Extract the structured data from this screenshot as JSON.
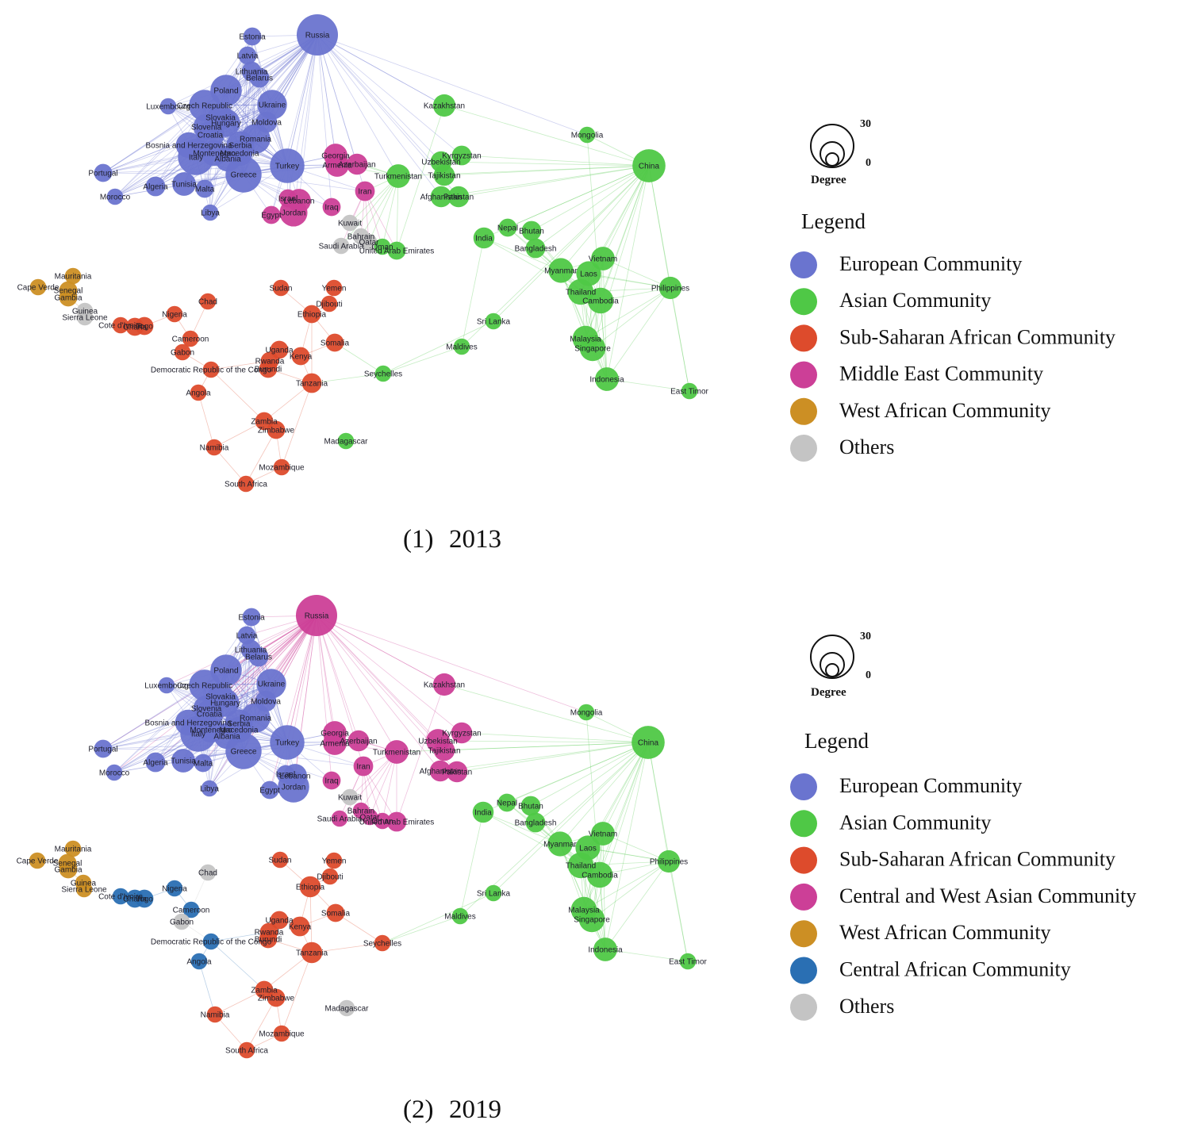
{
  "colors": {
    "eu": "#6a74cf",
    "as": "#4fc846",
    "ssa": "#dd4b2c",
    "me": "#cc3f97",
    "wa": "#cc8f24",
    "ca": "#2a6fb3",
    "ot": "#c4c4c4"
  },
  "degree": {
    "title": "Degree",
    "max": "30",
    "min": "0"
  },
  "legend_title": "Legend",
  "panels": [
    {
      "caption_num": "(1)",
      "caption_year": "2013",
      "legend": [
        {
          "color": "#6a74cf",
          "label": "European Community"
        },
        {
          "color": "#4fc846",
          "label": "Asian Community"
        },
        {
          "color": "#dd4b2c",
          "label": "Sub-Saharan African Community"
        },
        {
          "color": "#cc3f97",
          "label": "Middle East Community"
        },
        {
          "color": "#cc8f24",
          "label": "West African Community"
        },
        {
          "color": "#c4c4c4",
          "label": "Others"
        }
      ]
    },
    {
      "caption_num": "(2)",
      "caption_year": "2019",
      "legend": [
        {
          "color": "#6a74cf",
          "label": "European Community"
        },
        {
          "color": "#4fc846",
          "label": "Asian Community"
        },
        {
          "color": "#dd4b2c",
          "label": "Sub-Saharan African Community"
        },
        {
          "color": "#cc3f97",
          "label": "Central and West Asian Community"
        },
        {
          "color": "#cc8f24",
          "label": "West African Community"
        },
        {
          "color": "#2a6fb3",
          "label": "Central  African Community"
        },
        {
          "color": "#c4c4c4",
          "label": "Others"
        }
      ]
    }
  ],
  "nodes": [
    {
      "id": "Russia",
      "label": "Russia",
      "c": [
        "eu",
        "me"
      ],
      "deg": [
        30,
        30
      ]
    },
    {
      "id": "Estonia",
      "label": "Estonia",
      "c": [
        "eu",
        "eu"
      ],
      "deg": [
        4,
        4
      ]
    },
    {
      "id": "Latvia",
      "label": "Latvia",
      "c": [
        "eu",
        "eu"
      ],
      "deg": [
        4,
        4
      ]
    },
    {
      "id": "Lithuania",
      "label": "Lithuania",
      "c": [
        "eu",
        "eu"
      ],
      "deg": [
        5,
        5
      ]
    },
    {
      "id": "Belarus",
      "label": "Belarus",
      "c": [
        "eu",
        "eu"
      ],
      "deg": [
        5,
        5
      ]
    },
    {
      "id": "Poland",
      "label": "Poland",
      "c": [
        "eu",
        "eu"
      ],
      "deg": [
        16,
        16
      ]
    },
    {
      "id": "Ukraine",
      "label": "Ukraine",
      "c": [
        "eu",
        "eu"
      ],
      "deg": [
        14,
        14
      ]
    },
    {
      "id": "Luxembourg",
      "label": "Luxembourg",
      "c": [
        "eu",
        "eu"
      ],
      "deg": [
        3,
        3
      ]
    },
    {
      "id": "Czech",
      "label": "Czech Republic",
      "c": [
        "eu",
        "eu"
      ],
      "deg": [
        16,
        16
      ]
    },
    {
      "id": "Slovakia",
      "label": "Slovakia",
      "c": [
        "eu",
        "eu"
      ],
      "deg": [
        10,
        10
      ]
    },
    {
      "id": "Hungary",
      "label": "Hungary",
      "c": [
        "eu",
        "eu"
      ],
      "deg": [
        12,
        12
      ]
    },
    {
      "id": "Moldova",
      "label": "Moldova",
      "c": [
        "eu",
        "eu"
      ],
      "deg": [
        6,
        6
      ]
    },
    {
      "id": "Slovenia",
      "label": "Slovenia",
      "c": [
        "eu",
        "eu"
      ],
      "deg": [
        10,
        10
      ]
    },
    {
      "id": "Croatia",
      "label": "Croatia",
      "c": [
        "eu",
        "eu"
      ],
      "deg": [
        12,
        12
      ]
    },
    {
      "id": "Romania",
      "label": "Romania",
      "c": [
        "eu",
        "eu"
      ],
      "deg": [
        14,
        14
      ]
    },
    {
      "id": "Bosnia",
      "label": "Bosnia and Herzegovina",
      "c": [
        "eu",
        "eu"
      ],
      "deg": [
        10,
        10
      ]
    },
    {
      "id": "Serbia",
      "label": "Serbia",
      "c": [
        "eu",
        "eu"
      ],
      "deg": [
        12,
        12
      ]
    },
    {
      "id": "Montenegro",
      "label": "Montenegro",
      "c": [
        "eu",
        "eu"
      ],
      "deg": [
        10,
        10
      ]
    },
    {
      "id": "Macedonia",
      "label": "Macedonia",
      "c": [
        "eu",
        "eu"
      ],
      "deg": [
        10,
        10
      ]
    },
    {
      "id": "Albania",
      "label": "Albania",
      "c": [
        "eu",
        "eu"
      ],
      "deg": [
        10,
        10
      ]
    },
    {
      "id": "Italy",
      "label": "Italy",
      "c": [
        "eu",
        "eu"
      ],
      "deg": [
        22,
        22
      ]
    },
    {
      "id": "Greece",
      "label": "Greece",
      "c": [
        "eu",
        "eu"
      ],
      "deg": [
        22,
        22
      ]
    },
    {
      "id": "Turkey",
      "label": "Turkey",
      "c": [
        "eu",
        "eu"
      ],
      "deg": [
        20,
        20
      ]
    },
    {
      "id": "Portugal",
      "label": "Portugal",
      "c": [
        "eu",
        "eu"
      ],
      "deg": [
        4,
        4
      ]
    },
    {
      "id": "Morocco",
      "label": "Morocco",
      "c": [
        "eu",
        "eu"
      ],
      "deg": [
        3,
        3
      ]
    },
    {
      "id": "Algeria",
      "label": "Algeria",
      "c": [
        "eu",
        "eu"
      ],
      "deg": [
        5,
        5
      ]
    },
    {
      "id": "Tunisia",
      "label": "Tunisia",
      "c": [
        "eu",
        "eu"
      ],
      "deg": [
        8,
        8
      ]
    },
    {
      "id": "Malta",
      "label": "Malta",
      "c": [
        "eu",
        "eu"
      ],
      "deg": [
        4,
        4
      ]
    },
    {
      "id": "Libya",
      "label": "Libya",
      "c": [
        "eu",
        "eu"
      ],
      "deg": [
        3,
        3
      ]
    },
    {
      "id": "Egypt",
      "label": "Egypt",
      "c": [
        "me",
        "eu"
      ],
      "deg": [
        4,
        4
      ]
    },
    {
      "id": "Lebanon",
      "label": "Lebanon",
      "c": [
        "me",
        "eu"
      ],
      "deg": [
        8,
        8
      ]
    },
    {
      "id": "Jordan",
      "label": "Jordan",
      "c": [
        "me",
        "eu"
      ],
      "deg": [
        12,
        16
      ]
    },
    {
      "id": "Israel",
      "label": "Israel",
      "c": [
        "me",
        "eu"
      ],
      "deg": [
        4,
        4
      ]
    },
    {
      "id": "Georgia",
      "label": "Georgia",
      "c": [
        "me",
        "me"
      ],
      "deg": [
        8,
        8
      ]
    },
    {
      "id": "Armenia",
      "label": "Armenia",
      "c": [
        "me",
        "me"
      ],
      "deg": [
        8,
        8
      ]
    },
    {
      "id": "Azerbaijan",
      "label": "Azerbaijan",
      "c": [
        "me",
        "me"
      ],
      "deg": [
        6,
        6
      ]
    },
    {
      "id": "Iran",
      "label": "Iran",
      "c": [
        "me",
        "me"
      ],
      "deg": [
        5,
        5
      ]
    },
    {
      "id": "Iraq",
      "label": "Iraq",
      "c": [
        "me",
        "me"
      ],
      "deg": [
        4,
        4
      ]
    },
    {
      "id": "Kuwait",
      "label": "Kuwait",
      "c": [
        "ot",
        "ot"
      ],
      "deg": [
        3,
        3
      ]
    },
    {
      "id": "Bahrain",
      "label": "Bahrain",
      "c": [
        "ot",
        "me"
      ],
      "deg": [
        3,
        3
      ]
    },
    {
      "id": "Saudi",
      "label": "Saudi Arabia",
      "c": [
        "ot",
        "me"
      ],
      "deg": [
        3,
        3
      ]
    },
    {
      "id": "Qatar",
      "label": "Qatar",
      "c": [
        "ot",
        "me"
      ],
      "deg": [
        3,
        3
      ]
    },
    {
      "id": "UAE",
      "label": "United Arab Emirates",
      "c": [
        "as",
        "me"
      ],
      "deg": [
        4,
        5
      ]
    },
    {
      "id": "Oman",
      "label": "Oman",
      "c": [
        "as",
        "me"
      ],
      "deg": [
        3,
        3
      ]
    },
    {
      "id": "Kazakhstan",
      "label": "Kazakhstan",
      "c": [
        "as",
        "me"
      ],
      "deg": [
        7,
        7
      ]
    },
    {
      "id": "Turkmenistan",
      "label": "Turkmenistan",
      "c": [
        "as",
        "me"
      ],
      "deg": [
        8,
        8
      ]
    },
    {
      "id": "Uzbekistan",
      "label": "Uzbekistan",
      "c": [
        "as",
        "me"
      ],
      "deg": [
        6,
        8
      ]
    },
    {
      "id": "Kyrgyzstan",
      "label": "Kyrgyzstan",
      "c": [
        "as",
        "me"
      ],
      "deg": [
        5,
        6
      ]
    },
    {
      "id": "Tajikistan",
      "label": "Tajikistan",
      "c": [
        "as",
        "me"
      ],
      "deg": [
        6,
        6
      ]
    },
    {
      "id": "Afghanistan",
      "label": "Afghanistan",
      "c": [
        "as",
        "me"
      ],
      "deg": [
        6,
        6
      ]
    },
    {
      "id": "Pakistan",
      "label": "Pakistan",
      "c": [
        "as",
        "me"
      ],
      "deg": [
        6,
        6
      ]
    },
    {
      "id": "Mongolia",
      "label": "Mongolia",
      "c": [
        "as",
        "as"
      ],
      "deg": [
        3,
        3
      ]
    },
    {
      "id": "China",
      "label": "China",
      "c": [
        "as",
        "as"
      ],
      "deg": [
        18,
        18
      ]
    },
    {
      "id": "India",
      "label": "India",
      "c": [
        "as",
        "as"
      ],
      "deg": [
        6,
        6
      ]
    },
    {
      "id": "Nepal",
      "label": "Nepal",
      "c": [
        "as",
        "as"
      ],
      "deg": [
        4,
        4
      ]
    },
    {
      "id": "Bhutan",
      "label": "Bhutan",
      "c": [
        "as",
        "as"
      ],
      "deg": [
        5,
        5
      ]
    },
    {
      "id": "Bangladesh",
      "label": "Bangladesh",
      "c": [
        "as",
        "as"
      ],
      "deg": [
        5,
        5
      ]
    },
    {
      "id": "Vietnam",
      "label": "Vietnam",
      "c": [
        "as",
        "as"
      ],
      "deg": [
        8,
        8
      ]
    },
    {
      "id": "Myanmar",
      "label": "Myanmar",
      "c": [
        "as",
        "as"
      ],
      "deg": [
        9,
        9
      ]
    },
    {
      "id": "Laos",
      "label": "Laos",
      "c": [
        "as",
        "as"
      ],
      "deg": [
        9,
        9
      ]
    },
    {
      "id": "Thailand",
      "label": "Thailand",
      "c": [
        "as",
        "as"
      ],
      "deg": [
        10,
        10
      ]
    },
    {
      "id": "Cambodia",
      "label": "Cambodia",
      "c": [
        "as",
        "as"
      ],
      "deg": [
        10,
        10
      ]
    },
    {
      "id": "Philippines",
      "label": "Philippines",
      "c": [
        "as",
        "as"
      ],
      "deg": [
        7,
        7
      ]
    },
    {
      "id": "SriLanka",
      "label": "Sri Lanka",
      "c": [
        "as",
        "as"
      ],
      "deg": [
        3,
        3
      ]
    },
    {
      "id": "Maldives",
      "label": "Maldives",
      "c": [
        "as",
        "as"
      ],
      "deg": [
        3,
        3
      ]
    },
    {
      "id": "Malaysia",
      "label": "Malaysia",
      "c": [
        "as",
        "as"
      ],
      "deg": [
        10,
        10
      ]
    },
    {
      "id": "Singapore",
      "label": "Singapore",
      "c": [
        "as",
        "as"
      ],
      "deg": [
        10,
        10
      ]
    },
    {
      "id": "Indonesia",
      "label": "Indonesia",
      "c": [
        "as",
        "as"
      ],
      "deg": [
        8,
        8
      ]
    },
    {
      "id": "EastTimor",
      "label": "East Timor",
      "c": [
        "as",
        "as"
      ],
      "deg": [
        3,
        3
      ]
    },
    {
      "id": "Seychelles",
      "label": "Seychelles",
      "c": [
        "as",
        "ssa"
      ],
      "deg": [
        3,
        3
      ]
    },
    {
      "id": "Madagascar",
      "label": "Madagascar",
      "c": [
        "as",
        "ot"
      ],
      "deg": [
        3,
        3
      ]
    },
    {
      "id": "Mauritania",
      "label": "Mauritania",
      "c": [
        "wa",
        "wa"
      ],
      "deg": [
        3,
        3
      ]
    },
    {
      "id": "CapeVerde",
      "label": "Cape Verde",
      "c": [
        "wa",
        "wa"
      ],
      "deg": [
        3,
        3
      ]
    },
    {
      "id": "Senegal",
      "label": "Senegal",
      "c": [
        "wa",
        "wa"
      ],
      "deg": [
        4,
        4
      ]
    },
    {
      "id": "Gambia",
      "label": "Gambia",
      "c": [
        "wa",
        "wa"
      ],
      "deg": [
        4,
        4
      ]
    },
    {
      "id": "Guinea",
      "label": "Guinea",
      "c": [
        "ot",
        "wa"
      ],
      "deg": [
        3,
        3
      ]
    },
    {
      "id": "SierraLeone",
      "label": "Sierra Leone",
      "c": [
        "ot",
        "wa"
      ],
      "deg": [
        3,
        3
      ]
    },
    {
      "id": "CotedIvoire",
      "label": "Cote d'Ivoire",
      "c": [
        "ssa",
        "ca"
      ],
      "deg": [
        3,
        3
      ]
    },
    {
      "id": "Ghana",
      "label": "Ghana",
      "c": [
        "ssa",
        "ca"
      ],
      "deg": [
        4,
        4
      ]
    },
    {
      "id": "Togo",
      "label": "Togo",
      "c": [
        "ssa",
        "ca"
      ],
      "deg": [
        4,
        4
      ]
    },
    {
      "id": "Nigeria",
      "label": "Nigeria",
      "c": [
        "ssa",
        "ca"
      ],
      "deg": [
        3,
        3
      ]
    },
    {
      "id": "Chad",
      "label": "Chad",
      "c": [
        "ssa",
        "ot"
      ],
      "deg": [
        3,
        3
      ]
    },
    {
      "id": "Cameroon",
      "label": "Cameroon",
      "c": [
        "ssa",
        "ca"
      ],
      "deg": [
        3,
        3
      ]
    },
    {
      "id": "Gabon",
      "label": "Gabon",
      "c": [
        "ssa",
        "ot"
      ],
      "deg": [
        3,
        3
      ]
    },
    {
      "id": "DRC",
      "label": "Democratic Republic of the Congo",
      "c": [
        "ssa",
        "ca"
      ],
      "deg": [
        3,
        3
      ]
    },
    {
      "id": "Angola",
      "label": "Angola",
      "c": [
        "ssa",
        "ca"
      ],
      "deg": [
        3,
        3
      ]
    },
    {
      "id": "Sudan",
      "label": "Sudan",
      "c": [
        "ssa",
        "ssa"
      ],
      "deg": [
        3,
        3
      ]
    },
    {
      "id": "Yemen",
      "label": "Yemen",
      "c": [
        "ssa",
        "ssa"
      ],
      "deg": [
        3,
        3
      ]
    },
    {
      "id": "Djibouti",
      "label": "Djibouti",
      "c": [
        "ssa",
        "ssa"
      ],
      "deg": [
        3,
        3
      ]
    },
    {
      "id": "Ethiopia",
      "label": "Ethiopia",
      "c": [
        "ssa",
        "ssa"
      ],
      "deg": [
        4,
        6
      ]
    },
    {
      "id": "Somalia",
      "label": "Somalia",
      "c": [
        "ssa",
        "ssa"
      ],
      "deg": [
        4,
        4
      ]
    },
    {
      "id": "Uganda",
      "label": "Uganda",
      "c": [
        "ssa",
        "ssa"
      ],
      "deg": [
        4,
        4
      ]
    },
    {
      "id": "Kenya",
      "label": "Kenya",
      "c": [
        "ssa",
        "ssa"
      ],
      "deg": [
        4,
        5
      ]
    },
    {
      "id": "Rwanda",
      "label": "Rwanda",
      "c": [
        "ssa",
        "ssa"
      ],
      "deg": [
        4,
        4
      ]
    },
    {
      "id": "Burundi",
      "label": "Burundi",
      "c": [
        "ssa",
        "ssa"
      ],
      "deg": [
        4,
        4
      ]
    },
    {
      "id": "Tanzania",
      "label": "Tanzania",
      "c": [
        "ssa",
        "ssa"
      ],
      "deg": [
        5,
        6
      ]
    },
    {
      "id": "Zambia",
      "label": "Zambia",
      "c": [
        "ssa",
        "ssa"
      ],
      "deg": [
        4,
        4
      ]
    },
    {
      "id": "Zimbabwe",
      "label": "Zimbabwe",
      "c": [
        "ssa",
        "ssa"
      ],
      "deg": [
        4,
        4
      ]
    },
    {
      "id": "Namibia",
      "label": "Namibia",
      "c": [
        "ssa",
        "ssa"
      ],
      "deg": [
        3,
        3
      ]
    },
    {
      "id": "Mozambique",
      "label": "Mozambique",
      "c": [
        "ssa",
        "ssa"
      ],
      "deg": [
        3,
        3
      ]
    },
    {
      "id": "SouthAfrica",
      "label": "South Africa",
      "c": [
        "ssa",
        "ssa"
      ],
      "deg": [
        3,
        3
      ]
    }
  ]
}
